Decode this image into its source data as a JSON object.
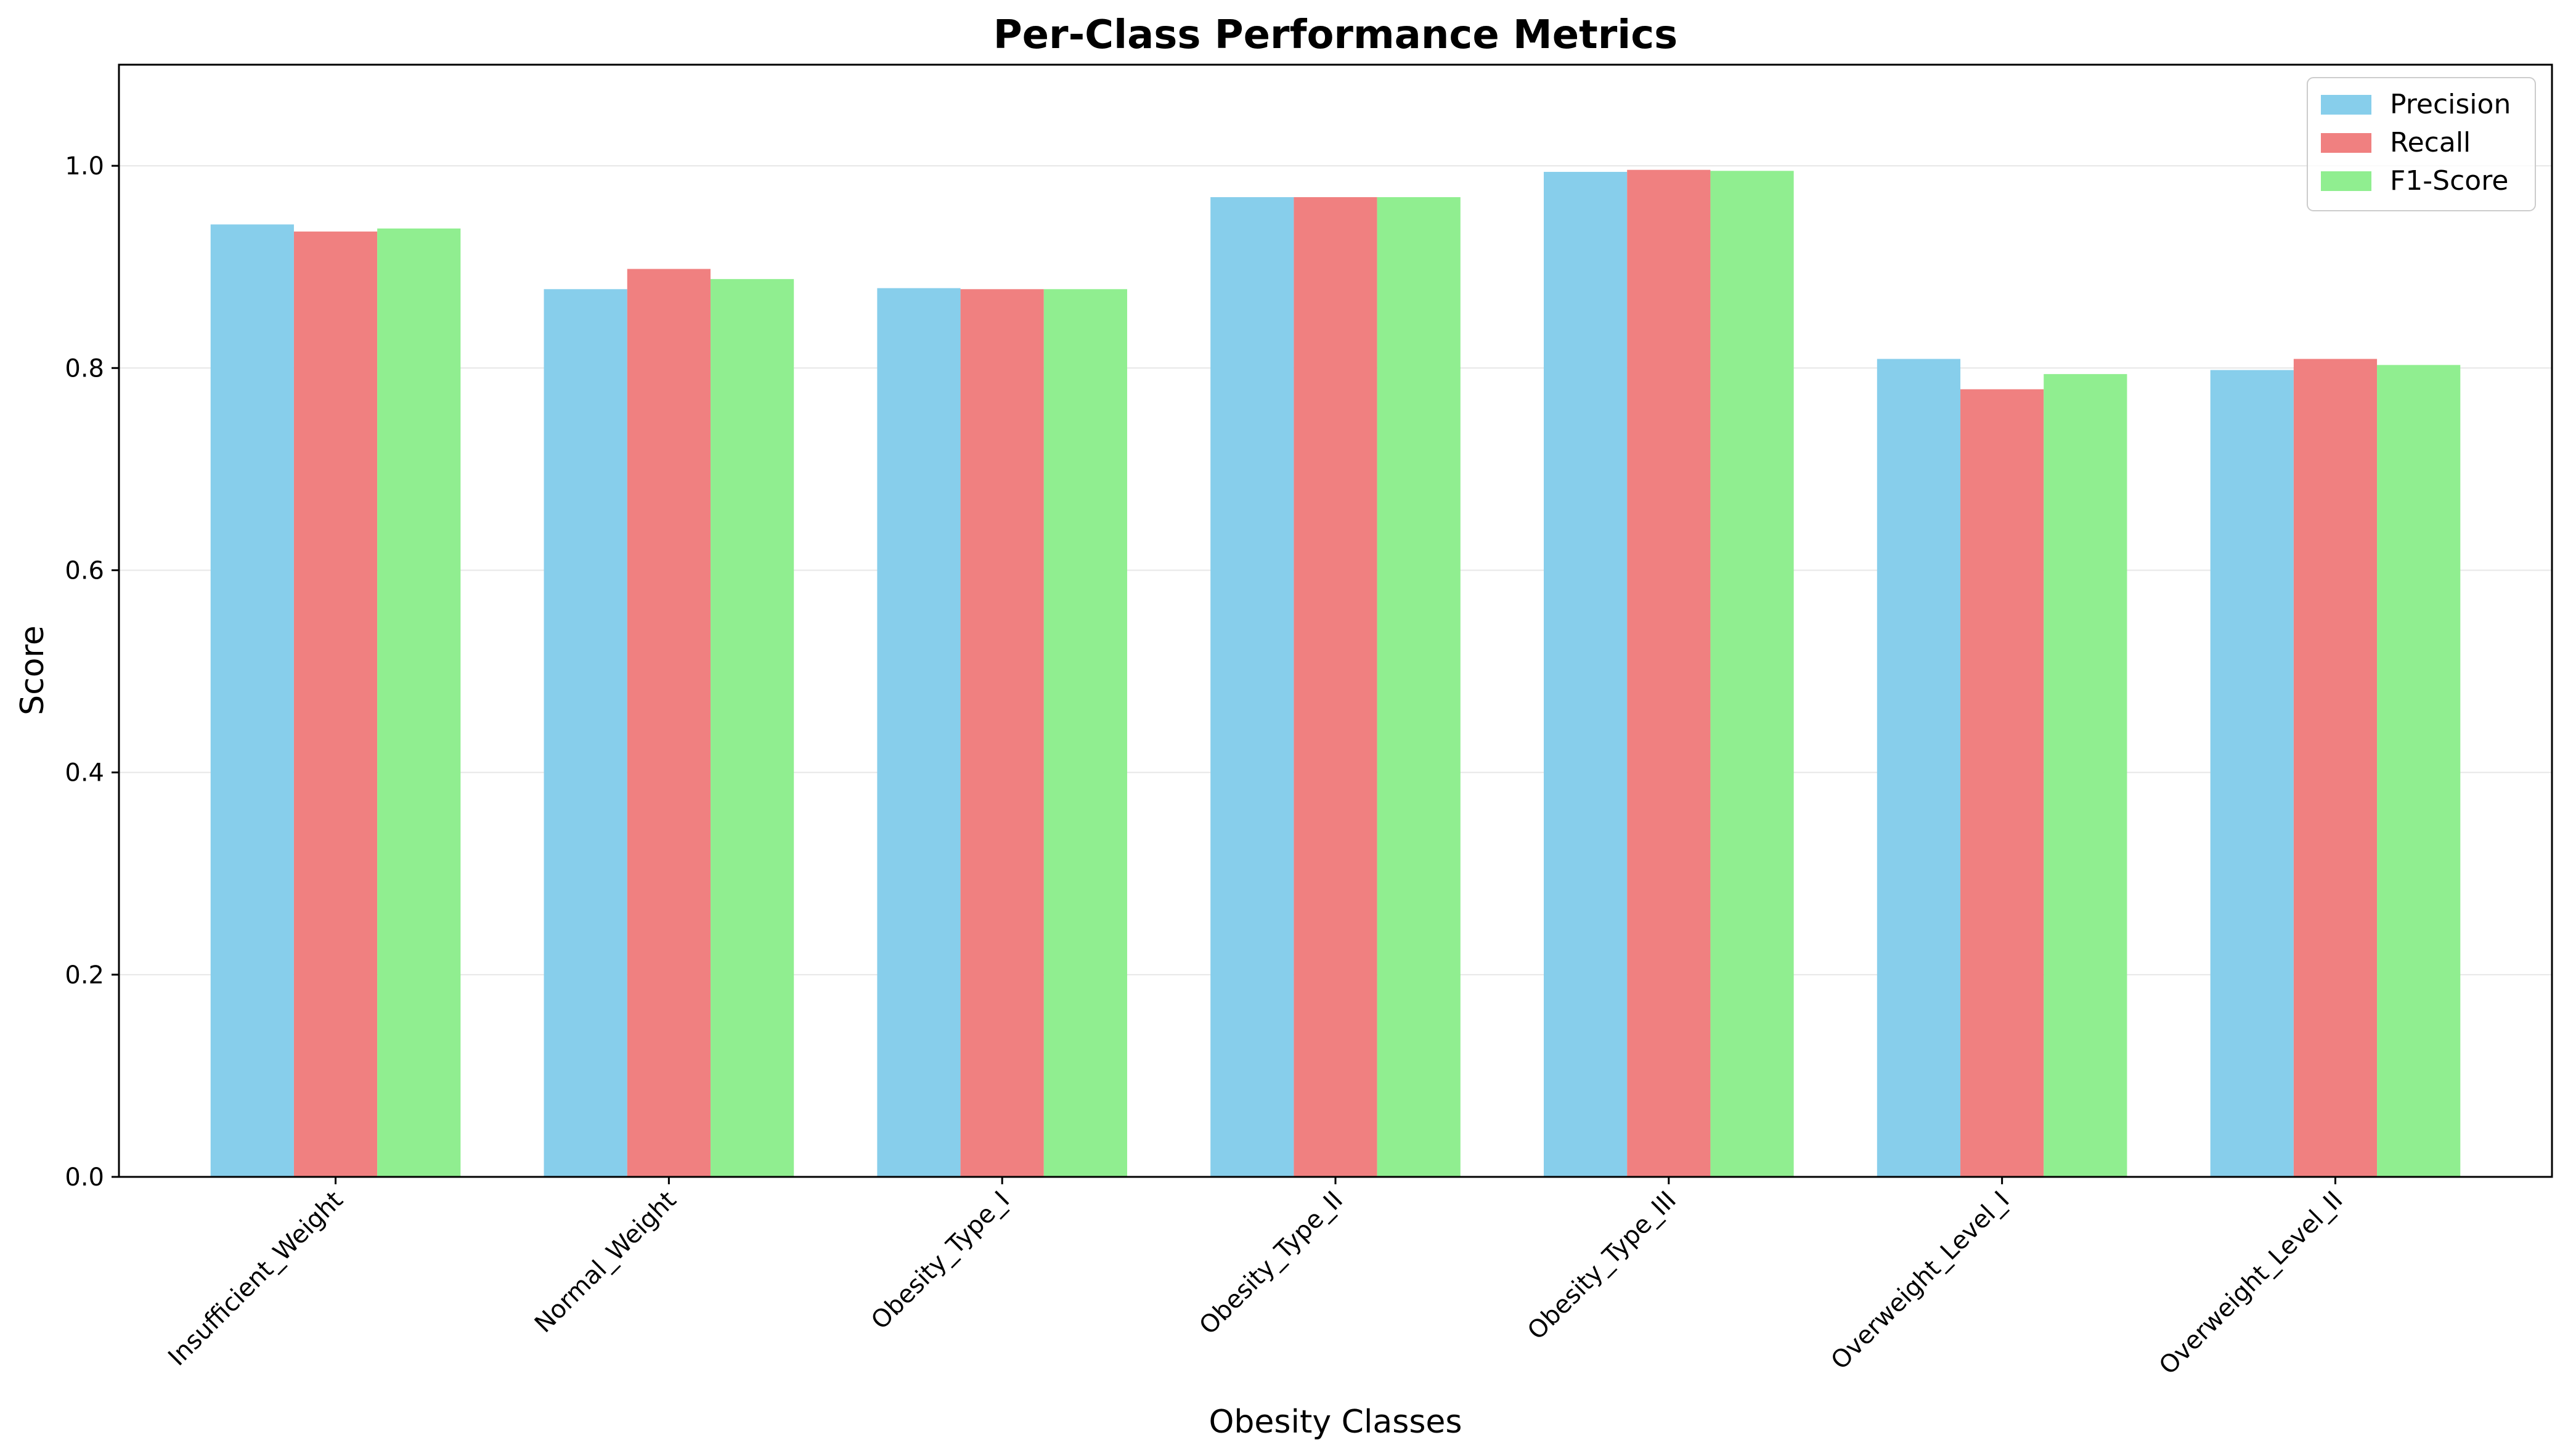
{
  "chart_data": {
    "type": "bar",
    "title": "Per-Class Performance Metrics",
    "xlabel": "Obesity Classes",
    "ylabel": "Score",
    "ylim": [
      0,
      1.1
    ],
    "yticks": [
      0.0,
      0.2,
      0.4,
      0.6,
      0.8,
      1.0
    ],
    "ytick_labels": [
      "0.0",
      "0.2",
      "0.4",
      "0.6",
      "0.8",
      "1.0"
    ],
    "grid": "horizontal",
    "legend_position": "top-right",
    "categories": [
      "Insufficient_Weight",
      "Normal_Weight",
      "Obesity_Type_I",
      "Obesity_Type_II",
      "Obesity_Type_III",
      "Overweight_Level_I",
      "Overweight_Level_II"
    ],
    "series": [
      {
        "name": "Precision",
        "color": "#87CEEB",
        "values": [
          0.942,
          0.878,
          0.879,
          0.969,
          0.994,
          0.809,
          0.798
        ]
      },
      {
        "name": "Recall",
        "color": "#F08080",
        "values": [
          0.935,
          0.898,
          0.878,
          0.969,
          0.996,
          0.779,
          0.809
        ]
      },
      {
        "name": "F1-Score",
        "color": "#90EE90",
        "values": [
          0.938,
          0.888,
          0.878,
          0.969,
          0.995,
          0.794,
          0.803
        ]
      }
    ]
  }
}
